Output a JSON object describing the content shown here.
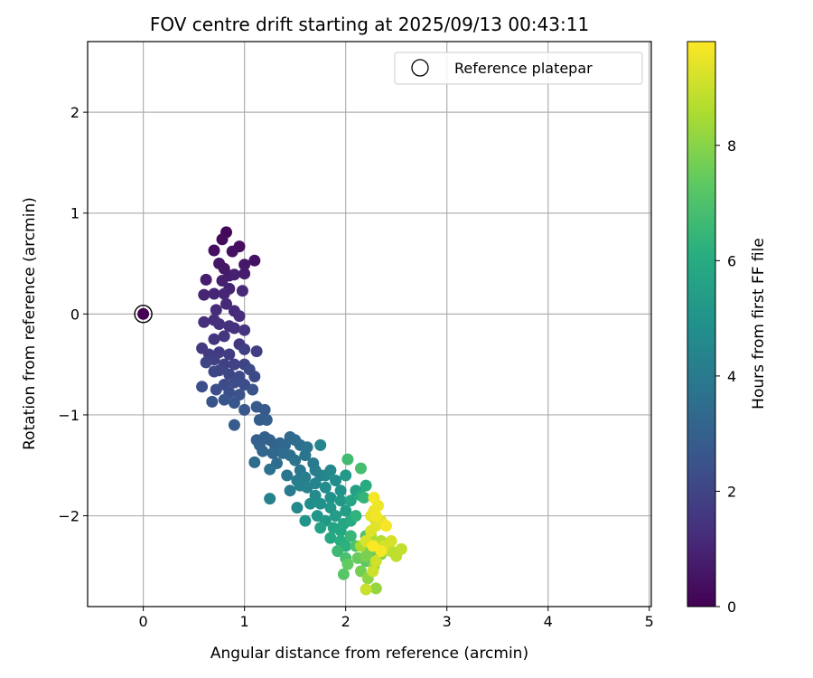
{
  "chart_data": {
    "type": "scatter",
    "title": "FOV centre drift starting at 2025/09/13 00:43:11",
    "xlabel": "Angular distance from reference (arcmin)",
    "ylabel": "Rotation from reference (arcmin)",
    "xlim": [
      -0.55,
      5.02
    ],
    "ylim": [
      -2.9,
      2.7
    ],
    "xticks": [
      0,
      1,
      2,
      3,
      4,
      5
    ],
    "xtick_labels": [
      "0",
      "1",
      "2",
      "3",
      "4",
      "5"
    ],
    "yticks": [
      -2,
      -1,
      0,
      1,
      2
    ],
    "ytick_labels": [
      "−2",
      "−1",
      "0",
      "1",
      "2"
    ],
    "grid": true,
    "legend": {
      "placement": "upper-right",
      "entries": [
        "Reference platepar"
      ]
    },
    "colorbar": {
      "label": "Hours from first FF file",
      "colormap": "viridis",
      "range": [
        0,
        9.8
      ],
      "ticks": [
        0,
        2,
        4,
        6,
        8
      ],
      "tick_labels": [
        "0",
        "2",
        "4",
        "6",
        "8"
      ]
    },
    "reference_point": {
      "x": 0,
      "y": 0
    },
    "series": [
      {
        "points": [
          [
            0.0,
            0.0,
            0.0
          ],
          [
            0.82,
            0.81,
            0.2
          ],
          [
            0.78,
            0.74,
            0.3
          ],
          [
            0.95,
            0.67,
            0.35
          ],
          [
            0.7,
            0.63,
            0.4
          ],
          [
            0.88,
            0.62,
            0.45
          ],
          [
            1.1,
            0.53,
            0.5
          ],
          [
            0.75,
            0.5,
            0.55
          ],
          [
            0.8,
            0.45,
            0.6
          ],
          [
            1.0,
            0.49,
            0.6
          ],
          [
            0.85,
            0.38,
            0.7
          ],
          [
            1.0,
            0.4,
            0.75
          ],
          [
            0.62,
            0.34,
            0.8
          ],
          [
            0.78,
            0.33,
            0.85
          ],
          [
            0.9,
            0.39,
            0.9
          ],
          [
            0.85,
            0.25,
            0.95
          ],
          [
            0.6,
            0.19,
            1.0
          ],
          [
            0.7,
            0.2,
            1.0
          ],
          [
            0.8,
            0.2,
            1.05
          ],
          [
            0.98,
            0.23,
            1.1
          ],
          [
            0.82,
            0.1,
            1.1
          ],
          [
            0.9,
            0.03,
            1.15
          ],
          [
            0.72,
            0.04,
            1.2
          ],
          [
            0.95,
            -0.02,
            1.25
          ],
          [
            0.6,
            -0.08,
            1.3
          ],
          [
            0.7,
            -0.06,
            1.3
          ],
          [
            0.75,
            -0.1,
            1.35
          ],
          [
            0.85,
            -0.12,
            1.4
          ],
          [
            0.9,
            -0.14,
            1.4
          ],
          [
            1.0,
            -0.16,
            1.45
          ],
          [
            0.7,
            -0.25,
            1.5
          ],
          [
            0.8,
            -0.22,
            1.55
          ],
          [
            0.95,
            -0.3,
            1.6
          ],
          [
            0.58,
            -0.34,
            1.65
          ],
          [
            0.65,
            -0.4,
            1.7
          ],
          [
            0.75,
            -0.38,
            1.7
          ],
          [
            0.85,
            -0.4,
            1.75
          ],
          [
            1.0,
            -0.35,
            1.8
          ],
          [
            1.12,
            -0.37,
            1.8
          ],
          [
            0.7,
            -0.45,
            1.85
          ],
          [
            0.8,
            -0.5,
            1.9
          ],
          [
            0.9,
            -0.5,
            1.9
          ],
          [
            1.0,
            -0.5,
            2.0
          ],
          [
            0.62,
            -0.48,
            2.0
          ],
          [
            0.75,
            -0.56,
            2.05
          ],
          [
            0.7,
            -0.57,
            2.1
          ],
          [
            0.85,
            -0.6,
            2.1
          ],
          [
            0.95,
            -0.62,
            2.15
          ],
          [
            1.05,
            -0.55,
            2.2
          ],
          [
            1.1,
            -0.62,
            2.2
          ],
          [
            0.8,
            -0.7,
            2.25
          ],
          [
            0.9,
            -0.68,
            2.3
          ],
          [
            1.0,
            -0.7,
            2.3
          ],
          [
            0.58,
            -0.72,
            2.35
          ],
          [
            0.72,
            -0.75,
            2.35
          ],
          [
            0.85,
            -0.78,
            2.4
          ],
          [
            0.95,
            -0.8,
            2.45
          ],
          [
            1.08,
            -0.75,
            2.5
          ],
          [
            0.68,
            -0.87,
            2.5
          ],
          [
            0.8,
            -0.85,
            2.55
          ],
          [
            0.9,
            -0.88,
            2.6
          ],
          [
            1.0,
            -0.95,
            2.65
          ],
          [
            1.12,
            -0.92,
            2.7
          ],
          [
            1.2,
            -0.95,
            2.75
          ],
          [
            0.9,
            -1.1,
            2.8
          ],
          [
            1.15,
            -1.05,
            2.85
          ],
          [
            1.22,
            -1.05,
            2.9
          ],
          [
            1.12,
            -1.25,
            2.95
          ],
          [
            1.2,
            -1.22,
            3.0
          ],
          [
            1.15,
            -1.3,
            3.05
          ],
          [
            1.25,
            -1.25,
            3.1
          ],
          [
            1.3,
            -1.3,
            3.1
          ],
          [
            1.35,
            -1.28,
            3.15
          ],
          [
            1.18,
            -1.36,
            3.2
          ],
          [
            1.28,
            -1.38,
            3.25
          ],
          [
            1.4,
            -1.3,
            3.3
          ],
          [
            1.45,
            -1.22,
            3.35
          ],
          [
            1.5,
            -1.25,
            3.4
          ],
          [
            1.38,
            -1.38,
            3.45
          ],
          [
            1.1,
            -1.47,
            3.5
          ],
          [
            1.32,
            -1.48,
            3.5
          ],
          [
            1.45,
            -1.4,
            3.55
          ],
          [
            1.55,
            -1.3,
            3.6
          ],
          [
            1.25,
            -1.54,
            3.65
          ],
          [
            1.5,
            -1.45,
            3.7
          ],
          [
            1.6,
            -1.4,
            3.75
          ],
          [
            1.62,
            -1.32,
            3.8
          ],
          [
            1.42,
            -1.6,
            3.85
          ],
          [
            1.55,
            -1.55,
            3.9
          ],
          [
            1.68,
            -1.48,
            3.95
          ],
          [
            1.52,
            -1.65,
            4.0
          ],
          [
            1.45,
            -1.75,
            4.05
          ],
          [
            1.7,
            -1.55,
            4.1
          ],
          [
            1.6,
            -1.62,
            4.15
          ],
          [
            1.75,
            -1.6,
            4.2
          ],
          [
            1.25,
            -1.83,
            4.25
          ],
          [
            1.55,
            -1.7,
            4.3
          ],
          [
            1.62,
            -1.72,
            4.35
          ],
          [
            1.7,
            -1.68,
            4.4
          ],
          [
            1.8,
            -1.6,
            4.45
          ],
          [
            1.75,
            -1.3,
            4.5
          ],
          [
            1.85,
            -1.55,
            4.55
          ],
          [
            1.52,
            -1.92,
            4.6
          ],
          [
            1.7,
            -1.8,
            4.65
          ],
          [
            1.8,
            -1.72,
            4.7
          ],
          [
            1.9,
            -1.65,
            4.75
          ],
          [
            1.65,
            -1.88,
            4.8
          ],
          [
            1.75,
            -1.88,
            4.85
          ],
          [
            1.85,
            -1.82,
            4.9
          ],
          [
            1.95,
            -1.75,
            5.0
          ],
          [
            1.6,
            -2.05,
            5.05
          ],
          [
            1.72,
            -2.0,
            5.1
          ],
          [
            1.85,
            -1.92,
            5.15
          ],
          [
            1.95,
            -1.85,
            5.2
          ],
          [
            2.0,
            -1.6,
            5.25
          ],
          [
            1.8,
            -2.05,
            5.3
          ],
          [
            1.9,
            -2.0,
            5.35
          ],
          [
            2.0,
            -1.95,
            5.4
          ],
          [
            2.1,
            -1.75,
            5.5
          ],
          [
            1.75,
            -2.12,
            5.6
          ],
          [
            1.88,
            -2.12,
            5.65
          ],
          [
            1.98,
            -2.08,
            5.7
          ],
          [
            2.05,
            -1.85,
            5.75
          ],
          [
            1.85,
            -2.22,
            5.8
          ],
          [
            1.95,
            -2.15,
            5.85
          ],
          [
            2.05,
            -2.05,
            5.9
          ],
          [
            2.15,
            -1.8,
            5.95
          ],
          [
            2.2,
            -1.7,
            6.0
          ],
          [
            1.95,
            -2.25,
            6.1
          ],
          [
            2.0,
            -2.3,
            6.2
          ],
          [
            2.1,
            -2.0,
            6.3
          ],
          [
            2.18,
            -1.82,
            6.4
          ],
          [
            2.05,
            -2.2,
            6.5
          ],
          [
            1.92,
            -2.35,
            6.6
          ],
          [
            2.02,
            -1.44,
            6.7
          ],
          [
            2.15,
            -1.53,
            6.8
          ],
          [
            2.0,
            -2.42,
            6.9
          ],
          [
            2.1,
            -2.3,
            7.0
          ],
          [
            2.2,
            -2.2,
            7.1
          ],
          [
            1.98,
            -2.58,
            7.2
          ],
          [
            2.2,
            -2.45,
            7.3
          ],
          [
            2.02,
            -2.48,
            7.4
          ],
          [
            2.12,
            -2.42,
            7.5
          ],
          [
            2.25,
            -2.35,
            7.6
          ],
          [
            2.15,
            -2.55,
            7.7
          ],
          [
            2.2,
            -2.4,
            7.8
          ],
          [
            2.35,
            -2.38,
            7.9
          ],
          [
            2.28,
            -2.5,
            8.0
          ],
          [
            2.22,
            -2.62,
            8.1
          ],
          [
            2.3,
            -2.72,
            8.2
          ],
          [
            2.4,
            -2.3,
            8.3
          ],
          [
            2.3,
            -2.05,
            8.4
          ],
          [
            2.15,
            -2.3,
            8.5
          ],
          [
            2.25,
            -2.2,
            8.6
          ],
          [
            2.35,
            -2.25,
            8.7
          ],
          [
            2.45,
            -2.35,
            8.8
          ],
          [
            2.5,
            -2.4,
            8.85
          ],
          [
            2.55,
            -2.33,
            8.9
          ],
          [
            2.2,
            -2.73,
            9.0
          ],
          [
            2.27,
            -2.55,
            9.05
          ],
          [
            2.3,
            -2.45,
            9.1
          ],
          [
            2.38,
            -2.3,
            9.15
          ],
          [
            2.45,
            -2.25,
            9.2
          ],
          [
            2.2,
            -2.25,
            9.25
          ],
          [
            2.25,
            -2.15,
            9.3
          ],
          [
            2.3,
            -2.1,
            9.35
          ],
          [
            2.35,
            -2.05,
            9.4
          ],
          [
            2.25,
            -2.0,
            9.45
          ],
          [
            2.28,
            -1.95,
            9.5
          ],
          [
            2.32,
            -1.9,
            9.55
          ],
          [
            2.3,
            -2.0,
            9.6
          ],
          [
            2.28,
            -1.82,
            9.65
          ],
          [
            2.35,
            -2.35,
            9.7
          ],
          [
            2.4,
            -2.1,
            9.7
          ],
          [
            2.27,
            -2.3,
            9.75
          ]
        ]
      }
    ]
  }
}
